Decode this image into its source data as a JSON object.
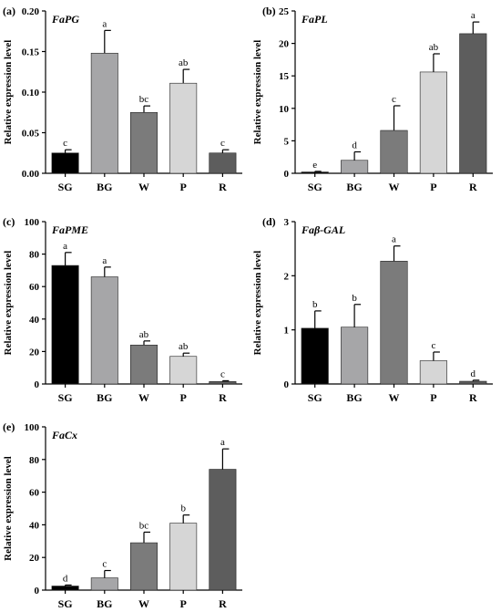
{
  "chart_data": [
    {
      "type": "bar",
      "panel_label": "(a)",
      "gene": "FaPG",
      "ylabel": "Relative expression level",
      "categories": [
        "SG",
        "BG",
        "W",
        "P",
        "R"
      ],
      "values": [
        0.025,
        0.148,
        0.075,
        0.111,
        0.025
      ],
      "errors": [
        0.004,
        0.028,
        0.008,
        0.017,
        0.004
      ],
      "letters": [
        "c",
        "a",
        "bc",
        "ab",
        "c"
      ],
      "colors": [
        "#000000",
        "#a6a6a8",
        "#7b7b7b",
        "#d6d6d6",
        "#5d5d5d"
      ],
      "ylim": [
        0,
        0.2
      ],
      "yticks": [
        0,
        0.05,
        0.1,
        0.15,
        0.2
      ],
      "ytick_labels": [
        "0.00",
        "0.05",
        "0.10",
        "0.15",
        "0.20"
      ]
    },
    {
      "type": "bar",
      "panel_label": "(b)",
      "gene": "FaPL",
      "ylabel": "Relative expression level",
      "categories": [
        "SG",
        "BG",
        "W",
        "P",
        "R"
      ],
      "values": [
        0.2,
        2.0,
        6.6,
        15.6,
        21.5
      ],
      "errors": [
        0.1,
        1.3,
        3.8,
        2.8,
        1.8
      ],
      "letters": [
        "e",
        "d",
        "c",
        "ab",
        "a"
      ],
      "colors": [
        "#000000",
        "#a6a6a8",
        "#7b7b7b",
        "#d6d6d6",
        "#5d5d5d"
      ],
      "ylim": [
        0,
        25
      ],
      "yticks": [
        0,
        5,
        10,
        15,
        20,
        25
      ],
      "ytick_labels": [
        "0",
        "5",
        "10",
        "15",
        "20",
        "25"
      ]
    },
    {
      "type": "bar",
      "panel_label": "(c)",
      "gene": "FaPME",
      "ylabel": "Relative expression level",
      "categories": [
        "SG",
        "BG",
        "W",
        "P",
        "R"
      ],
      "values": [
        73,
        66,
        24,
        17,
        1.5
      ],
      "errors": [
        8,
        6,
        2.5,
        2,
        0.5
      ],
      "letters": [
        "a",
        "a",
        "ab",
        "ab",
        "c"
      ],
      "colors": [
        "#000000",
        "#a6a6a8",
        "#7b7b7b",
        "#d6d6d6",
        "#5d5d5d"
      ],
      "ylim": [
        0,
        100
      ],
      "yticks": [
        0,
        20,
        40,
        60,
        80,
        100
      ],
      "ytick_labels": [
        "0",
        "20",
        "40",
        "60",
        "80",
        "100"
      ]
    },
    {
      "type": "bar",
      "panel_label": "(d)",
      "gene": "Faβ-GAL",
      "ylabel": "Relative expression level",
      "categories": [
        "SG",
        "BG",
        "W",
        "P",
        "R"
      ],
      "values": [
        1.03,
        1.05,
        2.27,
        0.43,
        0.05
      ],
      "errors": [
        0.32,
        0.42,
        0.28,
        0.16,
        0.02
      ],
      "letters": [
        "b",
        "b",
        "a",
        "c",
        "d"
      ],
      "colors": [
        "#000000",
        "#a6a6a8",
        "#7b7b7b",
        "#d6d6d6",
        "#5d5d5d"
      ],
      "ylim": [
        0,
        3
      ],
      "yticks": [
        0,
        1,
        2,
        3
      ],
      "ytick_labels": [
        "0",
        "1",
        "2",
        "3"
      ]
    },
    {
      "type": "bar",
      "panel_label": "(e)",
      "gene": "FaCx",
      "ylabel": "Relative expression level",
      "categories": [
        "SG",
        "BG",
        "W",
        "P",
        "R"
      ],
      "values": [
        2.5,
        7.5,
        29,
        41,
        74
      ],
      "errors": [
        0.6,
        4.5,
        6.5,
        5,
        12.5
      ],
      "letters": [
        "d",
        "c",
        "bc",
        "b",
        "a"
      ],
      "colors": [
        "#000000",
        "#a6a6a8",
        "#7b7b7b",
        "#d6d6d6",
        "#5d5d5d"
      ],
      "ylim": [
        0,
        100
      ],
      "yticks": [
        0,
        20,
        40,
        60,
        80,
        100
      ],
      "ytick_labels": [
        "0",
        "20",
        "40",
        "60",
        "80",
        "100"
      ]
    }
  ]
}
